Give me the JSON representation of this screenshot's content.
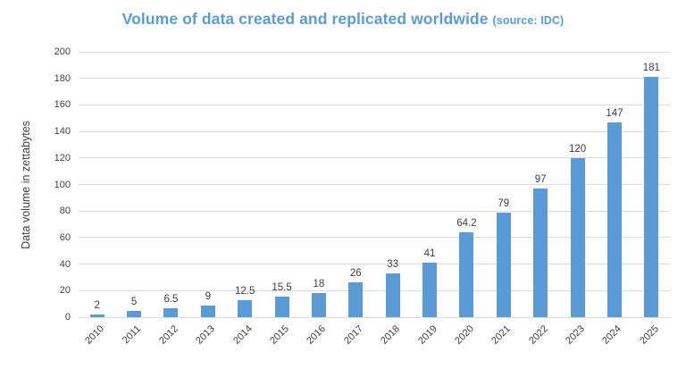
{
  "title": "Volume of data created and replicated worldwide",
  "title_source_suffix": "(source: IDC)",
  "colors": {
    "bar": "#5B9BD5",
    "title": "#5B9BD5",
    "axis_text": "#404040",
    "gridline": "#DBDBDB"
  },
  "chart_data": {
    "type": "bar",
    "title": "Volume of data created and replicated worldwide (source: IDC)",
    "categories": [
      "2010",
      "2011",
      "2012",
      "2013",
      "2014",
      "2015",
      "2016",
      "2017",
      "2018",
      "2019",
      "2020",
      "2021",
      "2022",
      "2023",
      "2024",
      "2025"
    ],
    "values": [
      2,
      5,
      6.5,
      9,
      12.5,
      15.5,
      18,
      26,
      33,
      41,
      64.2,
      79,
      97,
      120,
      147,
      181
    ],
    "value_labels": [
      "2",
      "5",
      "6.5",
      "9",
      "12.5",
      "15.5",
      "18",
      "26",
      "33",
      "41",
      "64.2",
      "79",
      "97",
      "120",
      "147",
      "181"
    ],
    "xlabel": "",
    "ylabel": "Data volume in zettabytes",
    "ylim": [
      0,
      200
    ],
    "yticks": [
      0,
      20,
      40,
      60,
      80,
      100,
      120,
      140,
      160,
      180,
      200
    ],
    "grid": true,
    "legend": false
  }
}
